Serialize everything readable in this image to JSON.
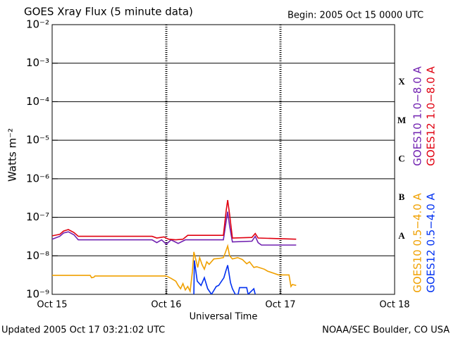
{
  "chart_data": {
    "type": "line",
    "title": "GOES Xray Flux (5 minute data)",
    "subtitle": "Begin:  2005 Oct 15 0000 UTC",
    "x_label": "Universal Time",
    "y_label": "Watts m⁻²",
    "footer_left": "Updated 2005 Oct 17 03:21:02 UTC",
    "footer_right": "NOAA/SEC Boulder, CO USA",
    "log_scale": true,
    "grid": true,
    "legend": "right",
    "xlim": [
      0,
      72
    ],
    "xticks": [
      {
        "value": 0,
        "label": "Oct 15"
      },
      {
        "value": 24,
        "label": "Oct 16"
      },
      {
        "value": 48,
        "label": "Oct 17"
      },
      {
        "value": 72,
        "label": "Oct 18"
      }
    ],
    "ylim": [
      1e-09,
      0.01
    ],
    "yticks": [
      {
        "value": 1e-09,
        "label": "10⁻⁹"
      },
      {
        "value": 1e-08,
        "label": "10⁻⁸"
      },
      {
        "value": 1e-07,
        "label": "10⁻⁷"
      },
      {
        "value": 1e-06,
        "label": "10⁻⁶"
      },
      {
        "value": 1e-05,
        "label": "10⁻⁵"
      },
      {
        "value": 0.0001,
        "label": "10⁻⁴"
      },
      {
        "value": 0.001,
        "label": "10⁻³"
      },
      {
        "value": 0.01,
        "label": "10⁻²"
      }
    ],
    "flare_classes": [
      "X",
      "M",
      "C",
      "B",
      "A"
    ],
    "series": [
      {
        "name": "GOES10 1.0−8.0 A",
        "color": "#7020b0",
        "x": [
          0,
          1.6,
          2.4,
          3.4,
          4.6,
          5.5,
          21,
          22,
          23,
          24,
          25,
          26.5,
          28,
          36,
          36.6,
          36.9,
          37.3,
          37.9,
          42,
          42.7,
          43.3,
          44,
          51.3
        ],
        "values": [
          2.7e-08,
          3.2e-08,
          3.9e-08,
          4.2e-08,
          3.5e-08,
          2.6e-08,
          2.6e-08,
          2.2e-08,
          2.6e-08,
          2e-08,
          2.6e-08,
          2.1e-08,
          2.6e-08,
          2.6e-08,
          8e-08,
          1.4e-07,
          6e-08,
          2.3e-08,
          2.4e-08,
          3.2e-08,
          2.2e-08,
          1.9e-08,
          1.9e-08
        ]
      },
      {
        "name": "GOES12 1.0−8.0 A",
        "color": "#e00010",
        "x": [
          0,
          1.6,
          2.4,
          3.4,
          4.6,
          5.5,
          21,
          22,
          23.5,
          24.5,
          26,
          27.5,
          28.5,
          36,
          36.6,
          36.9,
          37.3,
          37.9,
          42,
          42.7,
          43.3,
          51.3
        ],
        "values": [
          3.3e-08,
          3.6e-08,
          4.4e-08,
          4.8e-08,
          4e-08,
          3.2e-08,
          3.2e-08,
          2.9e-08,
          3.1e-08,
          2.7e-08,
          2.6e-08,
          2.7e-08,
          3.4e-08,
          3.4e-08,
          1.5e-07,
          2.8e-07,
          1.2e-07,
          2.9e-08,
          3e-08,
          3.8e-08,
          2.9e-08,
          2.7e-08
        ]
      },
      {
        "name": "GOES10 0.5−4.0 A",
        "color": "#f0a000",
        "x": [
          0,
          8,
          8.3,
          8.8,
          9,
          24,
          25,
          26,
          26.5,
          27,
          27.5,
          28,
          28.5,
          29,
          29.5,
          29.8,
          30.2,
          30.6,
          31,
          31.5,
          32,
          32.5,
          33,
          34,
          35,
          36,
          36.4,
          36.9,
          37.3,
          37.9,
          39,
          40,
          40.9,
          41.5,
          42.4,
          43,
          44.6,
          45.3,
          47.6,
          49.8,
          50.2,
          50.5,
          51.3
        ],
        "values": [
          3.1e-09,
          3.1e-09,
          2.7e-09,
          2.8e-09,
          3e-09,
          3e-09,
          2.6e-09,
          2.2e-09,
          1.7e-09,
          1.4e-09,
          1.9e-09,
          1.3e-09,
          1.6e-09,
          1.2e-09,
          4e-09,
          1.26e-08,
          8e-09,
          5e-09,
          9e-09,
          6e-09,
          4.5e-09,
          7e-09,
          6e-09,
          8.3e-09,
          8.5e-09,
          9e-09,
          1.2e-08,
          1.8e-08,
          1e-08,
          8.3e-09,
          9e-09,
          8e-09,
          6.2e-09,
          7e-09,
          5e-09,
          5.2e-09,
          4.5e-09,
          4e-09,
          3.2e-09,
          3.2e-09,
          1.6e-09,
          1.8e-09,
          1.7e-09
        ]
      },
      {
        "name": "GOES12 0.5−4.0 A",
        "color": "#0030f0",
        "x": [
          29.8,
          29.9,
          30.5,
          31.3,
          32,
          32.7,
          33.5,
          34.5,
          35,
          36.1,
          36.5,
          36.9,
          37.5,
          37.9,
          38.5,
          39.1,
          39.4,
          40.9,
          41.2,
          42.4,
          42.7
        ],
        "values": [
          1e-09,
          7.6e-09,
          2.2e-09,
          1.7e-09,
          2.7e-09,
          1.4e-09,
          1e-09,
          1.6e-09,
          1.7e-09,
          2.7e-09,
          4e-09,
          5.7e-09,
          2e-09,
          1.4e-09,
          1e-09,
          1e-09,
          1.5e-09,
          1.5e-09,
          1e-09,
          1.4e-09,
          1e-09
        ]
      }
    ]
  }
}
